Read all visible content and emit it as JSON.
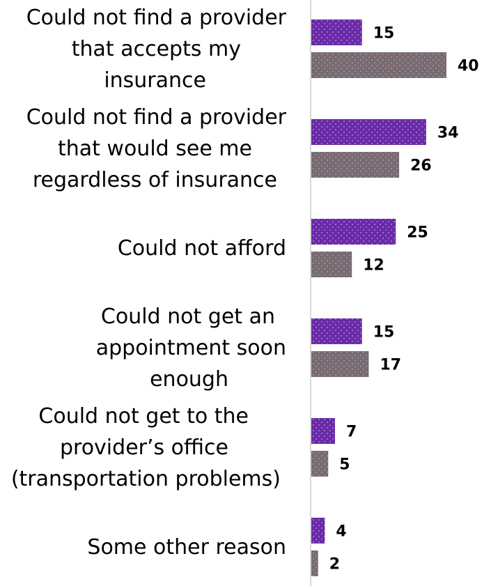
{
  "chart_data": {
    "type": "bar",
    "orientation": "horizontal",
    "categories": [
      [
        "Could not find a provider",
        "that accepts my",
        "insurance"
      ],
      [
        "Could not find a provider",
        "that would see me",
        "regardless of insurance"
      ],
      [
        "Could not afford"
      ],
      [
        "Could not get an",
        "appointment soon",
        "enough"
      ],
      [
        "Could not get to the",
        "provider’s office",
        "(transportation problems)"
      ],
      [
        "Some other reason"
      ]
    ],
    "series": [
      {
        "values": [
          15,
          34,
          25,
          15,
          7,
          4
        ],
        "color": "#6a2aa8"
      },
      {
        "values": [
          40,
          26,
          12,
          17,
          5,
          2
        ],
        "color": "#7a6a70"
      }
    ],
    "data_labels": [
      [
        "15",
        "34",
        "25",
        "15",
        "7",
        "4"
      ],
      [
        "40",
        "26",
        "12",
        "17",
        "5",
        "2"
      ]
    ],
    "xlim": [
      0,
      43
    ],
    "grid": false,
    "legend": "none"
  }
}
